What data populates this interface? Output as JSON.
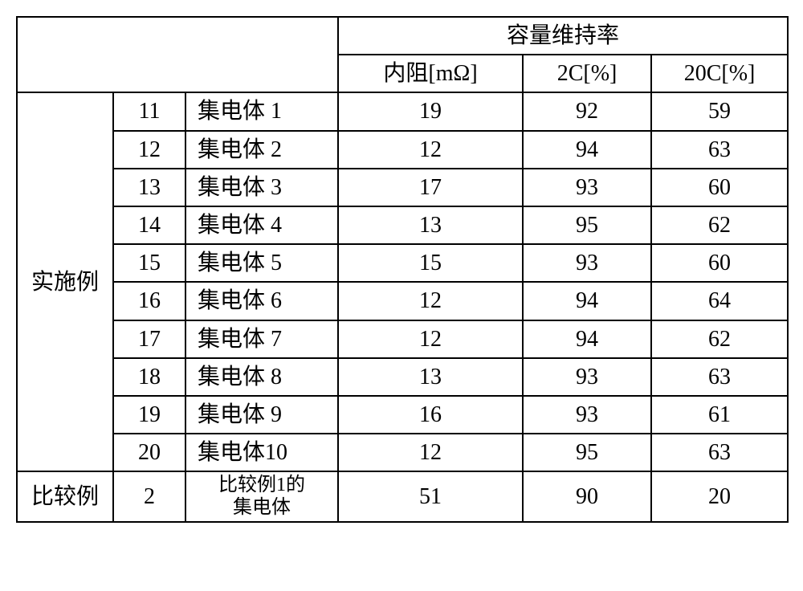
{
  "header": {
    "group_title": "容量维持率",
    "col_resistance": "内阻[mΩ]",
    "col_2c": "2C[%]",
    "col_20c": "20C[%]"
  },
  "groups": {
    "examples_label": "实施例",
    "comparison_label": "比较例"
  },
  "rows": [
    {
      "num": "11",
      "name": "集电体 1",
      "r": "19",
      "c2": "92",
      "c20": "59"
    },
    {
      "num": "12",
      "name": "集电体 2",
      "r": "12",
      "c2": "94",
      "c20": "63"
    },
    {
      "num": "13",
      "name": "集电体 3",
      "r": "17",
      "c2": "93",
      "c20": "60"
    },
    {
      "num": "14",
      "name": "集电体 4",
      "r": "13",
      "c2": "95",
      "c20": "62"
    },
    {
      "num": "15",
      "name": "集电体 5",
      "r": "15",
      "c2": "93",
      "c20": "60"
    },
    {
      "num": "16",
      "name": "集电体 6",
      "r": "12",
      "c2": "94",
      "c20": "64"
    },
    {
      "num": "17",
      "name": "集电体 7",
      "r": "12",
      "c2": "94",
      "c20": "62"
    },
    {
      "num": "18",
      "name": "集电体 8",
      "r": "13",
      "c2": "93",
      "c20": "63"
    },
    {
      "num": "19",
      "name": "集电体 9",
      "r": "16",
      "c2": "93",
      "c20": "61"
    },
    {
      "num": "20",
      "name": "集电体10",
      "r": "12",
      "c2": "95",
      "c20": "63"
    }
  ],
  "comparison_row": {
    "num": "2",
    "name_line1": "比较例1的",
    "name_line2": "集电体",
    "r": "51",
    "c2": "90",
    "c20": "20"
  }
}
